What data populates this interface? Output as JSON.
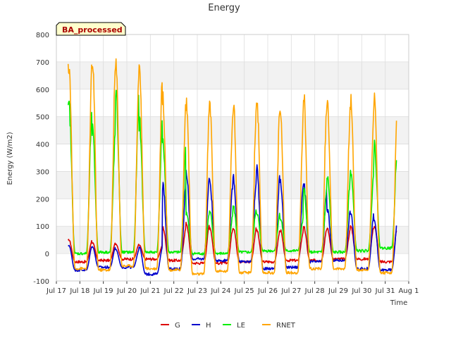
{
  "chart_data": {
    "type": "line",
    "title": "Energy",
    "badge": "BA_processed",
    "xlabel": "Time",
    "ylabel": "Energy (W/m2)",
    "ylim": [
      -100,
      800
    ],
    "yticks": [
      -100,
      0,
      100,
      200,
      300,
      400,
      500,
      600,
      700,
      800
    ],
    "xlim": [
      17,
      32
    ],
    "xticks": [
      {
        "v": 17,
        "label": "Jul 17"
      },
      {
        "v": 18,
        "label": "Jul 18"
      },
      {
        "v": 19,
        "label": "Jul 19"
      },
      {
        "v": 20,
        "label": "Jul 20"
      },
      {
        "v": 21,
        "label": "Jul 21"
      },
      {
        "v": 22,
        "label": "Jul 22"
      },
      {
        "v": 23,
        "label": "Jul 23"
      },
      {
        "v": 24,
        "label": "Jul 24"
      },
      {
        "v": 25,
        "label": "Jul 25"
      },
      {
        "v": 26,
        "label": "Jul 26"
      },
      {
        "v": 27,
        "label": "Jul 27"
      },
      {
        "v": 28,
        "label": "Jul 28"
      },
      {
        "v": 29,
        "label": "Jul 29"
      },
      {
        "v": 30,
        "label": "Jul 30"
      },
      {
        "v": 31,
        "label": "Jul 31"
      },
      {
        "v": 32,
        "label": "Aug 1"
      }
    ],
    "grid": true,
    "legend_position": "bottom",
    "series": [
      {
        "name": "G",
        "color": "#dd0000",
        "night": [
          -30,
          -25,
          -20,
          -20,
          -25,
          -35,
          -35,
          -30,
          -30,
          -25,
          -25,
          -20,
          -20,
          -30
        ],
        "peak": [
          50,
          40,
          35,
          30,
          95,
          110,
          95,
          95,
          85,
          85,
          95,
          90,
          100,
          100
        ]
      },
      {
        "name": "H",
        "color": "#0000cc",
        "night": [
          -60,
          -50,
          -50,
          -75,
          -55,
          -20,
          -25,
          -30,
          -55,
          -50,
          -30,
          -25,
          -55,
          -60
        ],
        "peak": [
          30,
          25,
          15,
          25,
          250,
          290,
          260,
          280,
          310,
          270,
          250,
          160,
          150,
          120
        ]
      },
      {
        "name": "LE",
        "color": "#00ee00",
        "night": [
          0,
          5,
          5,
          5,
          5,
          0,
          0,
          5,
          10,
          10,
          5,
          5,
          10,
          20
        ],
        "peak": [
          540,
          450,
          580,
          480,
          400,
          150,
          150,
          170,
          150,
          130,
          230,
          280,
          300,
          400
        ]
      },
      {
        "name": "RNET",
        "color": "#ffa500",
        "night": [
          -55,
          -60,
          -45,
          -55,
          -60,
          -75,
          -65,
          -70,
          -70,
          -70,
          -55,
          -55,
          -60,
          -70
        ],
        "peak": [
          690,
          700,
          680,
          680,
          560,
          550,
          540,
          545,
          560,
          515,
          570,
          555,
          555,
          555
        ]
      }
    ],
    "day_start": 17.5
  }
}
